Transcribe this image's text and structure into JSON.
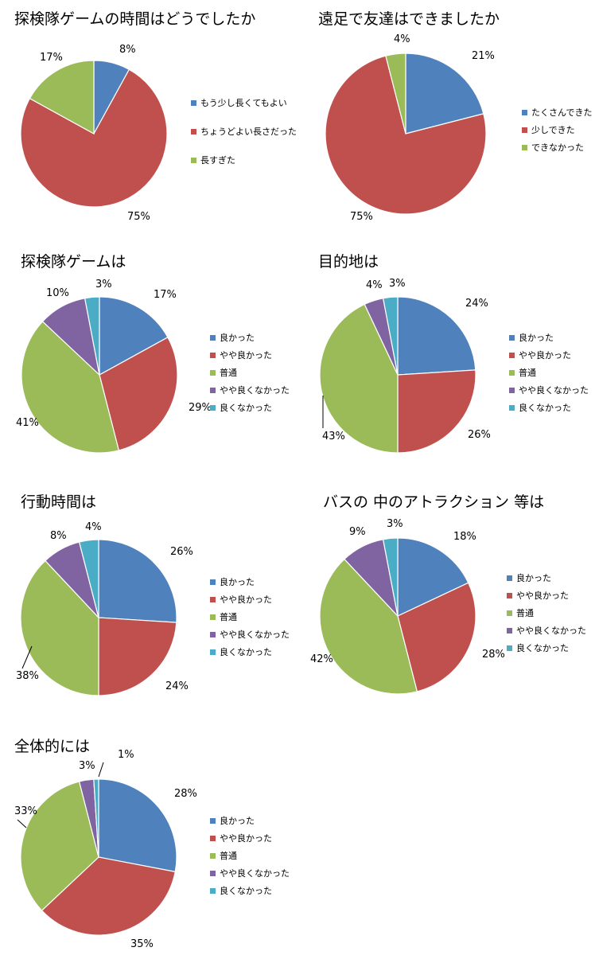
{
  "colors": {
    "blue": "#4F81BD",
    "red": "#C0504D",
    "green": "#9BBB59",
    "purple": "#8064A2",
    "cyan": "#4BACC6"
  },
  "chart_data": [
    {
      "type": "pie",
      "title": "探検隊ゲームの時間はどうでしたか",
      "categories": [
        "もう少し長くてもよい",
        "ちょうどよい長さだった",
        "長すぎた"
      ],
      "values": [
        8,
        75,
        17
      ],
      "labels": [
        "8%",
        "75%",
        "17%"
      ],
      "colors": [
        "#4F81BD",
        "#C0504D",
        "#9BBB59"
      ],
      "legend_position": "right"
    },
    {
      "type": "pie",
      "title": "遠足で友達はできましたか",
      "categories": [
        "たくさんできた",
        "少しできた",
        "できなかった"
      ],
      "values": [
        21,
        75,
        4
      ],
      "labels": [
        "21%",
        "75%",
        "4%"
      ],
      "colors": [
        "#4F81BD",
        "#C0504D",
        "#9BBB59"
      ],
      "legend_position": "right"
    },
    {
      "type": "pie",
      "title": "探検隊ゲームは",
      "categories": [
        "良かった",
        "やや良かった",
        "普通",
        "やや良くなかった",
        "良くなかった"
      ],
      "values": [
        17,
        29,
        41,
        10,
        3
      ],
      "labels": [
        "17%",
        "29%",
        "41%",
        "10%",
        "3%"
      ],
      "colors": [
        "#4F81BD",
        "#C0504D",
        "#9BBB59",
        "#8064A2",
        "#4BACC6"
      ],
      "legend_position": "right"
    },
    {
      "type": "pie",
      "title": "目的地は",
      "categories": [
        "良かった",
        "やや良かった",
        "普通",
        "やや良くなかった",
        "良くなかった"
      ],
      "values": [
        24,
        26,
        43,
        4,
        3
      ],
      "labels": [
        "24%",
        "26%",
        "43%",
        "4%",
        "3%"
      ],
      "colors": [
        "#4F81BD",
        "#C0504D",
        "#9BBB59",
        "#8064A2",
        "#4BACC6"
      ],
      "legend_position": "right"
    },
    {
      "type": "pie",
      "title": "行動時間は",
      "categories": [
        "良かった",
        "やや良かった",
        "普通",
        "やや良くなかった",
        "良くなかった"
      ],
      "values": [
        26,
        24,
        38,
        8,
        4
      ],
      "labels": [
        "26%",
        "24%",
        "38%",
        "8%",
        "4%"
      ],
      "colors": [
        "#4F81BD",
        "#C0504D",
        "#9BBB59",
        "#8064A2",
        "#4BACC6"
      ],
      "legend_position": "right"
    },
    {
      "type": "pie",
      "title": "バスの 中のアトラクション 等は",
      "categories": [
        "良かった",
        "やや良かった",
        "普通",
        "やや良くなかった",
        "良くなかった"
      ],
      "values": [
        18,
        28,
        42,
        9,
        3
      ],
      "labels": [
        "18%",
        "28%",
        "42%",
        "9%",
        "3%"
      ],
      "colors": [
        "#4F81BD",
        "#C0504D",
        "#9BBB59",
        "#8064A2",
        "#4BACC6"
      ],
      "legend_position": "right"
    },
    {
      "type": "pie",
      "title": "全体的には",
      "categories": [
        "良かった",
        "やや良かった",
        "普通",
        "やや良くなかった",
        "良くなかった"
      ],
      "values": [
        28,
        35,
        33,
        3,
        1
      ],
      "labels": [
        "28%",
        "35%",
        "33%",
        "3%",
        "1%"
      ],
      "colors": [
        "#4F81BD",
        "#C0504D",
        "#9BBB59",
        "#8064A2",
        "#4BACC6"
      ],
      "legend_position": "right"
    }
  ]
}
